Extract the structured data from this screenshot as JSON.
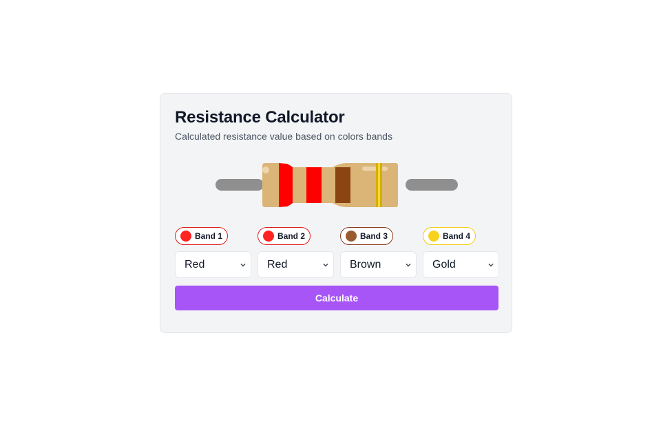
{
  "header": {
    "title": "Resistance Calculator",
    "subtitle": "Calculated resistance value based on colors bands"
  },
  "bands": [
    {
      "label": "Band 1",
      "value": "Red",
      "color": "#ff1f1f",
      "border": "#e11d1d"
    },
    {
      "label": "Band 2",
      "value": "Red",
      "color": "#ff1f1f",
      "border": "#e11d1d"
    },
    {
      "label": "Band 3",
      "value": "Brown",
      "color": "#9a5b2e",
      "border": "#8b3a1e"
    },
    {
      "label": "Band 4",
      "value": "Gold",
      "color": "#f7d21e",
      "border": "#f2cc14"
    }
  ],
  "resistor": {
    "body_color": "#dbb577",
    "lead_color": "#8f8f8f",
    "band_colors": [
      "#ff0000",
      "#ff0000",
      "#8b4513",
      "#d4af00"
    ]
  },
  "actions": {
    "calculate_label": "Calculate"
  },
  "accent": "#a855f7"
}
